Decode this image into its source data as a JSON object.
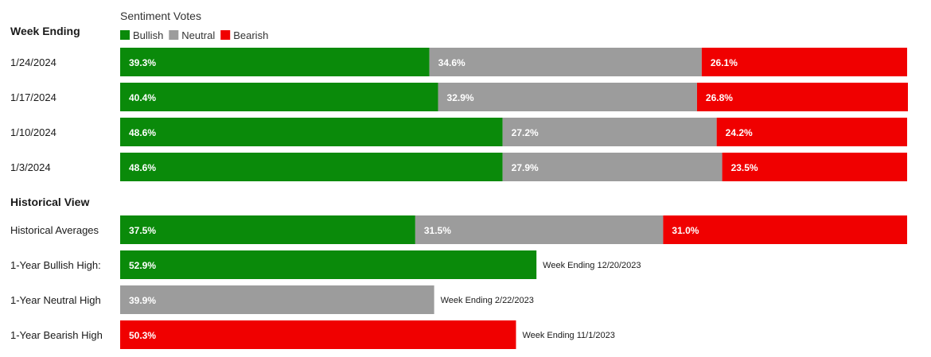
{
  "chart_data": {
    "type": "bar",
    "orientation": "horizontal",
    "stacked": true,
    "title": "Sentiment Votes",
    "legend_position": "top-left",
    "colors": {
      "Bullish": "#0a8a0a",
      "Neutral": "#9c9c9c",
      "Bearish": "#f00000"
    },
    "xlim": [
      0,
      100
    ],
    "unit": "%",
    "weekly": {
      "heading": "Week Ending",
      "categories": [
        "1/24/2024",
        "1/17/2024",
        "1/10/2024",
        "1/3/2024"
      ],
      "series": [
        {
          "name": "Bullish",
          "values": [
            39.3,
            40.4,
            48.6,
            48.6
          ],
          "labels": [
            "39.3%",
            "40.4%",
            "48.6%",
            "48.6%"
          ]
        },
        {
          "name": "Neutral",
          "values": [
            34.6,
            32.9,
            27.2,
            27.9
          ],
          "labels": [
            "34.6%",
            "32.9%",
            "27.2%",
            "27.9%"
          ]
        },
        {
          "name": "Bearish",
          "values": [
            26.1,
            26.8,
            24.2,
            23.5
          ],
          "labels": [
            "26.1%",
            "26.8%",
            "24.2%",
            "23.5%"
          ]
        }
      ]
    },
    "historical": {
      "heading": "Historical View",
      "averages": {
        "label": "Historical Averages",
        "values": [
          37.5,
          31.5,
          31.0
        ],
        "labels": [
          "37.5%",
          "31.5%",
          "31.0%"
        ]
      },
      "highs": [
        {
          "label": "1-Year Bullish High:",
          "series": "Bullish",
          "value": 52.9,
          "value_label": "52.9%",
          "note": "Week Ending 12/20/2023"
        },
        {
          "label": "1-Year Neutral High",
          "series": "Neutral",
          "value": 39.9,
          "value_label": "39.9%",
          "note": "Week Ending 2/22/2023"
        },
        {
          "label": "1-Year Bearish High",
          "series": "Bearish",
          "value": 50.3,
          "value_label": "50.3%",
          "note": "Week Ending 11/1/2023"
        }
      ]
    }
  }
}
